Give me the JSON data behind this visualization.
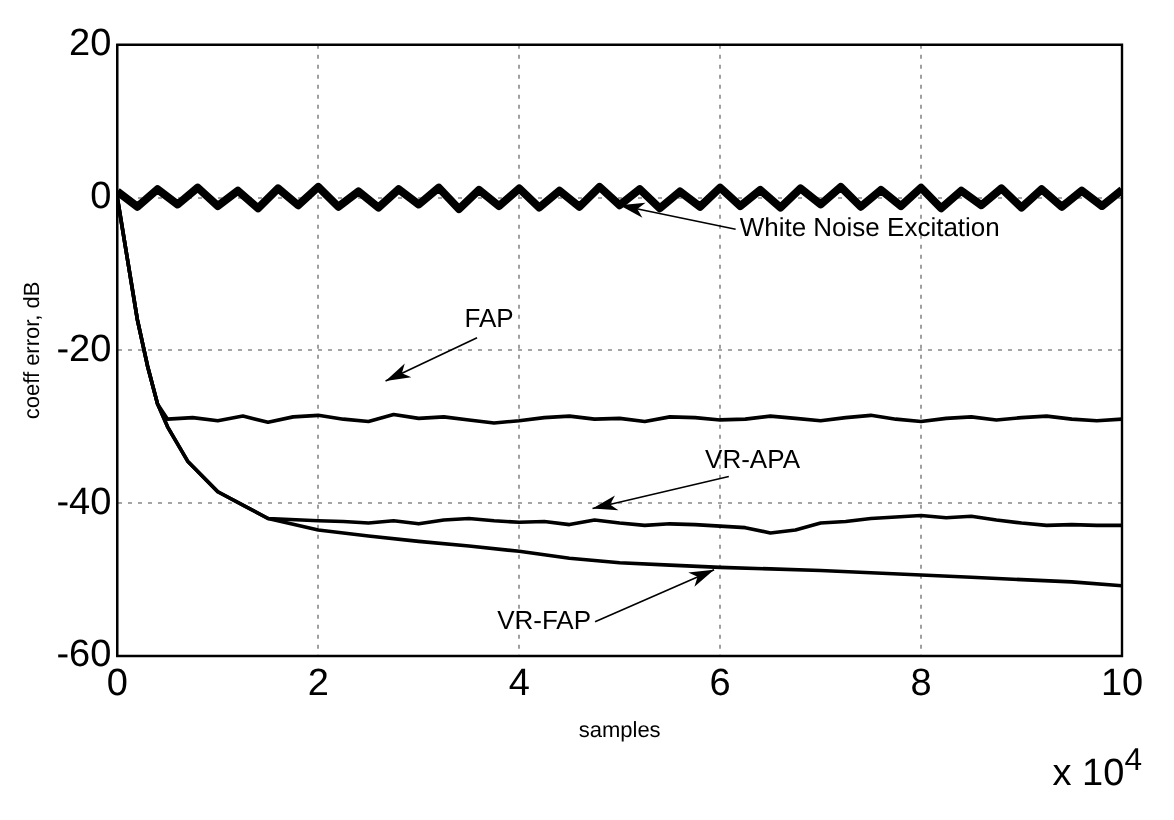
{
  "chart_data": {
    "type": "line",
    "xlabel": "samples",
    "ylabel": "coeff error, dB",
    "xlim": [
      0,
      10
    ],
    "xticks": [
      0,
      2,
      4,
      6,
      8,
      10
    ],
    "ylim": [
      -60,
      20
    ],
    "yticks": [
      -60,
      -40,
      -20,
      0,
      20
    ],
    "grid": true,
    "legend": false,
    "marker": "none",
    "annotations": [
      {
        "text": "White Noise Excitation",
        "x": 5.0,
        "y": -1
      },
      "FAP",
      {
        "text": "VR-APA",
        "x": 4.73,
        "y": -40.7
      },
      {
        "text": "VR-FAP",
        "x": 5.94,
        "y": -48.7
      },
      "x 10$^{4}$"
    ],
    "series": [
      {
        "color": "#000000",
        "x": [
          0,
          0.2,
          0.4,
          0.6,
          0.8,
          1,
          1.2,
          1.4,
          1.6,
          1.8,
          2,
          2.2,
          2.4,
          2.6,
          2.8,
          3,
          3.2,
          3.4,
          3.6,
          3.8,
          4,
          4.2,
          4.4,
          4.6,
          4.8,
          5,
          5.2,
          5.4,
          5.6,
          5.8,
          6,
          6.2,
          6.4,
          6.6,
          6.8,
          7,
          7.2,
          7.4,
          7.6,
          7.8,
          8,
          8.2,
          8.4,
          8.6,
          8.8,
          9,
          9.2,
          9.4,
          9.6,
          9.8,
          10
        ],
        "values": [
          0.8,
          -1.2,
          1.1,
          -0.9,
          1.3,
          -1.1,
          0.9,
          -1.4,
          1.2,
          -1.0,
          1.4,
          -1.2,
          0.8,
          -1.3,
          1.1,
          -0.9,
          1.3,
          -1.5,
          1.0,
          -1.1,
          1.2,
          -1.3,
          0.9,
          -1.2,
          1.4,
          -1.0,
          1.1,
          -1.4,
          0.8,
          -1.2,
          1.3,
          -1.1,
          1.0,
          -1.3,
          1.2,
          -0.9,
          1.4,
          -1.2,
          1.0,
          -1.1,
          1.3,
          -1.4,
          0.9,
          -1.0,
          1.2,
          -1.3,
          1.1,
          -1.2,
          0.9,
          -1.1,
          1.0
        ]
      },
      {
        "color": "#000000",
        "x": [
          0,
          0.1,
          0.2,
          0.3,
          0.4,
          0.5,
          0.75,
          1,
          1.25,
          1.5,
          1.75,
          2,
          2.25,
          2.5,
          2.75,
          3,
          3.25,
          3.5,
          3.75,
          4,
          4.25,
          4.5,
          4.75,
          5,
          5.25,
          5.5,
          5.75,
          6,
          6.25,
          6.5,
          6.75,
          7,
          7.25,
          7.5,
          7.75,
          8,
          8.25,
          8.5,
          8.75,
          9,
          9.25,
          9.5,
          9.75,
          10
        ],
        "values": [
          0,
          -8,
          -16,
          -22,
          -27,
          -29,
          -28.8,
          -29.2,
          -28.6,
          -29.4,
          -28.7,
          -28.5,
          -29.0,
          -29.3,
          -28.4,
          -28.9,
          -28.7,
          -29.1,
          -29.5,
          -29.2,
          -28.8,
          -28.6,
          -29.0,
          -28.9,
          -29.3,
          -28.7,
          -28.8,
          -29.1,
          -29.0,
          -28.6,
          -28.9,
          -29.2,
          -28.8,
          -28.5,
          -29.0,
          -29.3,
          -28.9,
          -28.7,
          -29.1,
          -28.8,
          -28.6,
          -29.0,
          -29.2,
          -29.0
        ]
      },
      {
        "color": "#000000",
        "x": [
          0,
          0.1,
          0.2,
          0.3,
          0.4,
          0.5,
          0.7,
          1,
          1.5,
          2,
          2.25,
          2.5,
          2.75,
          3,
          3.25,
          3.5,
          3.75,
          4,
          4.25,
          4.5,
          4.75,
          5,
          5.25,
          5.5,
          5.75,
          6,
          6.25,
          6.5,
          6.75,
          7,
          7.25,
          7.5,
          7.75,
          8,
          8.25,
          8.5,
          8.75,
          9,
          9.25,
          9.5,
          9.75,
          10
        ],
        "values": [
          0,
          -8,
          -16,
          -22,
          -27,
          -30,
          -34.5,
          -38.5,
          -42,
          -42.3,
          -42.4,
          -42.6,
          -42.3,
          -42.7,
          -42.2,
          -42.0,
          -42.3,
          -42.5,
          -42.4,
          -42.8,
          -42.2,
          -42.6,
          -42.9,
          -42.7,
          -42.8,
          -43.0,
          -43.2,
          -43.9,
          -43.5,
          -42.6,
          -42.4,
          -42.0,
          -41.8,
          -41.6,
          -41.9,
          -41.7,
          -42.2,
          -42.6,
          -42.9,
          -42.8,
          -42.9,
          -42.9
        ]
      },
      {
        "color": "#000000",
        "x": [
          0,
          0.1,
          0.2,
          0.3,
          0.4,
          0.5,
          0.7,
          1,
          1.5,
          2,
          2.5,
          3,
          3.5,
          4,
          4.5,
          5,
          5.5,
          6,
          6.5,
          7,
          7.5,
          8,
          8.5,
          9,
          9.5,
          10
        ],
        "values": [
          0,
          -8,
          -16,
          -22,
          -27,
          -30,
          -34.5,
          -38.5,
          -42,
          -43.5,
          -44.3,
          -45,
          -45.6,
          -46.3,
          -47.2,
          -47.8,
          -48.1,
          -48.4,
          -48.6,
          -48.8,
          -49.1,
          -49.4,
          -49.7,
          -50,
          -50.3,
          -50.8
        ]
      }
    ]
  }
}
